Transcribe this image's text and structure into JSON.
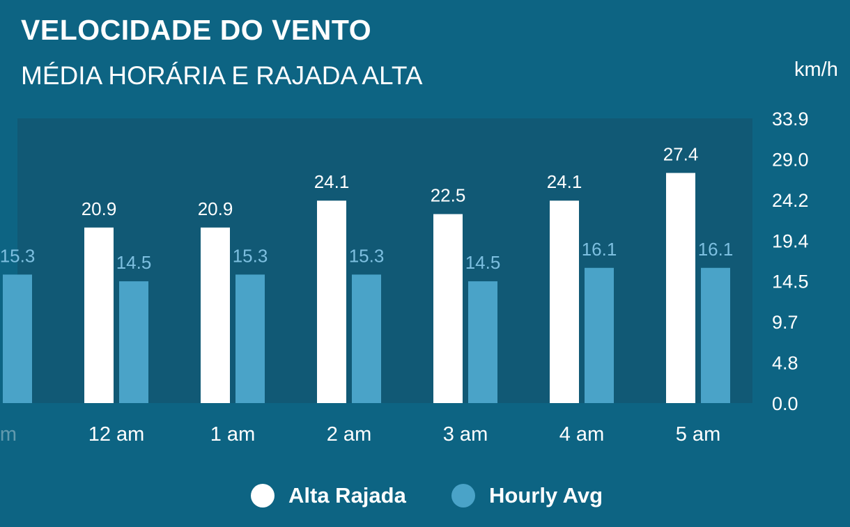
{
  "header": {
    "title": "VELOCIDADE DO VENTO",
    "subtitle": "MÉDIA HORÁRIA E RAJADA ALTA",
    "unit": "km/h"
  },
  "colors": {
    "background": "#0d6483",
    "plot_area": "#115975",
    "gust": "#ffffff",
    "avg": "#4aa3c8",
    "avg_label": "#7dbfe0",
    "text": "#ffffff"
  },
  "chart_data": {
    "type": "bar",
    "title": "VELOCIDADE DO VENTO",
    "subtitle": "MÉDIA HORÁRIA E RAJADA ALTA",
    "ylabel": "km/h",
    "ylim": [
      0,
      33.9
    ],
    "y_ticks": [
      "33.9",
      "29.0",
      "24.2",
      "19.4",
      "14.5",
      "9.7",
      "4.8",
      "0.0"
    ],
    "categories": [
      "pm",
      "12 am",
      "1 am",
      "2 am",
      "3 am",
      "4 am",
      "5 am"
    ],
    "series": [
      {
        "name": "Alta Rajada",
        "values": [
          null,
          20.9,
          20.9,
          24.1,
          22.5,
          24.1,
          27.4
        ]
      },
      {
        "name": "Hourly Avg",
        "values": [
          15.3,
          14.5,
          15.3,
          15.3,
          14.5,
          16.1,
          16.1
        ]
      }
    ],
    "grid": false,
    "legend": "bottom-center"
  }
}
